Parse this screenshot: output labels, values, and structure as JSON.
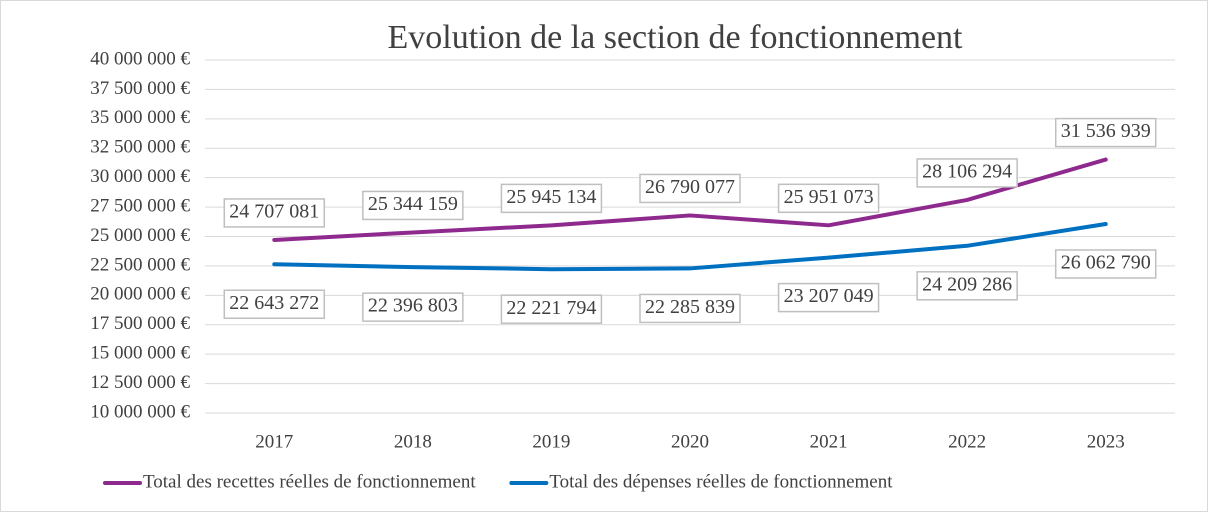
{
  "chart_data": {
    "type": "line",
    "title": "Evolution de la section de fonctionnement",
    "categories": [
      "2017",
      "2018",
      "2019",
      "2020",
      "2021",
      "2022",
      "2023"
    ],
    "series": [
      {
        "name": "Total des recettes réelles de fonctionnement",
        "color": "#8e2a8e",
        "values": [
          24707081,
          25344159,
          25945134,
          26790077,
          25951073,
          28106294,
          31536939
        ],
        "value_labels": [
          "24 707 081",
          "25 344 159",
          "25 945 134",
          "26 790 077",
          "25 951 073",
          "28 106 294",
          "31 536 939"
        ]
      },
      {
        "name": "Total des dépenses réelles de fonctionnement",
        "color": "#0070c0",
        "values": [
          22643272,
          22396803,
          22221794,
          22285839,
          23207049,
          24209286,
          26062790
        ],
        "value_labels": [
          "22 643 272",
          "22 396 803",
          "22 221 794",
          "22 285 839",
          "23 207 049",
          "24 209 286",
          "26 062 790"
        ]
      }
    ],
    "ylim": [
      10000000,
      40000000
    ],
    "yticks": [
      {
        "value": 10000000,
        "label": "10 000 000 €"
      },
      {
        "value": 12500000,
        "label": "12 500 000 €"
      },
      {
        "value": 15000000,
        "label": "15 000 000 €"
      },
      {
        "value": 17500000,
        "label": "17 500 000 €"
      },
      {
        "value": 20000000,
        "label": "20 000 000 €"
      },
      {
        "value": 22500000,
        "label": "22 500 000 €"
      },
      {
        "value": 25000000,
        "label": "25 000 000 €"
      },
      {
        "value": 27500000,
        "label": "27 500 000 €"
      },
      {
        "value": 30000000,
        "label": "30 000 000 €"
      },
      {
        "value": 32500000,
        "label": "32 500 000 €"
      },
      {
        "value": 35000000,
        "label": "35 000 000 €"
      },
      {
        "value": 37500000,
        "label": "37 500 000 €"
      },
      {
        "value": 40000000,
        "label": "40 000 000 €"
      }
    ],
    "grid": true,
    "legend": "bottom"
  }
}
